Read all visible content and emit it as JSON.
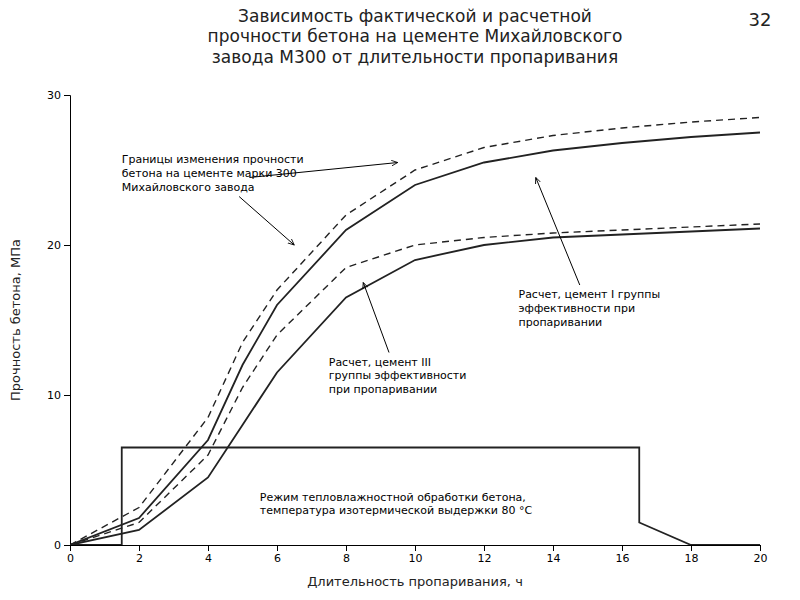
{
  "chart_data": {
    "type": "line",
    "title": "Зависимость фактической и расчетной\nпрочности бетона на цементе Михайловского\nзавода М300 от длительности пропаривания",
    "xlabel": "Длительность пропаривания, ч",
    "ylabel": "Прочность бетона, МПа",
    "xlim": [
      0,
      20
    ],
    "ylim": [
      0,
      30
    ],
    "xticks": [
      0,
      2,
      4,
      6,
      8,
      10,
      12,
      14,
      16,
      18,
      20
    ],
    "yticks": [
      0,
      10,
      20,
      30
    ],
    "grid": false,
    "color": "#222222",
    "series": [
      {
        "x": [
          0,
          1.5,
          1.5,
          16.5,
          16.5,
          18,
          20
        ],
        "values": [
          0,
          0,
          6.5,
          6.5,
          1.5,
          0,
          0
        ],
        "line_style": "solid"
      },
      {
        "x": [
          0,
          2,
          4,
          5,
          6,
          8,
          10,
          12,
          14,
          16,
          18,
          20
        ],
        "values": [
          0,
          2.5,
          8.5,
          13.5,
          17,
          22,
          25,
          26.5,
          27.3,
          27.8,
          28.2,
          28.5
        ],
        "line_style": "dashed"
      },
      {
        "x": [
          0,
          2,
          4,
          5,
          6,
          8,
          10,
          12,
          14,
          16,
          18,
          20
        ],
        "values": [
          0,
          1.5,
          6.0,
          10.5,
          14.0,
          18.5,
          20.0,
          20.5,
          20.8,
          21.0,
          21.2,
          21.4
        ],
        "line_style": "dashed"
      },
      {
        "x": [
          0,
          2,
          4,
          5,
          6,
          8,
          10,
          12,
          14,
          16,
          18,
          20
        ],
        "values": [
          0,
          1.8,
          7.0,
          12.0,
          16.0,
          21.0,
          24.0,
          25.5,
          26.3,
          26.8,
          27.2,
          27.5
        ],
        "line_style": "solid"
      },
      {
        "x": [
          0,
          2,
          4,
          5,
          6,
          8,
          10,
          12,
          14,
          16,
          18,
          20
        ],
        "values": [
          0,
          1.0,
          4.5,
          8.0,
          11.5,
          16.5,
          19.0,
          20.0,
          20.5,
          20.7,
          20.9,
          21.1
        ],
        "line_style": "solid"
      }
    ],
    "annotations": [
      {
        "text": "32"
      },
      {
        "text": "Границы изменения прочности\nбетона на цементе марки 300\nМихайловского завода",
        "x": 6.5,
        "y": 20,
        "text_x": 1.5,
        "text_y": 26
      },
      {
        "x": 9.5,
        "y": 25.5,
        "text_x": 5.2,
        "text_y": 24.5
      },
      {
        "text": "Расчет, цемент I группы\nэффективности при\nпропаривании",
        "x": 13.5,
        "y": 24.5,
        "text_x": 13.0,
        "text_y": 17.0
      },
      {
        "text": "Расчет, цемент III\nгруппы эффективности\nпри пропаривании",
        "x": 8.5,
        "y": 17.5,
        "text_x": 7.5,
        "text_y": 12.5
      },
      {
        "text": "Режим тепловлажностной обработки бетона,\nтемпература изотермической выдержки 80 °С",
        "text_x": 5.5,
        "text_y": 3.5
      }
    ]
  }
}
